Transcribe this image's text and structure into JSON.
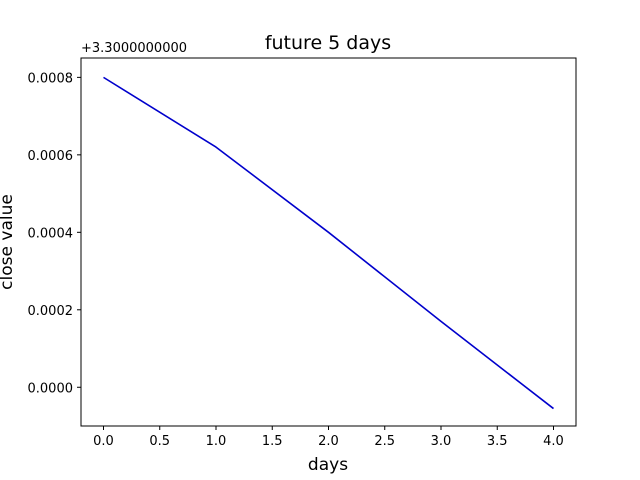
{
  "chart_data": {
    "type": "line",
    "title": "future 5 days",
    "xlabel": "days",
    "ylabel": "close value",
    "y_offset_label": "+3.3000000000",
    "x": [
      0,
      1,
      2,
      3,
      4
    ],
    "series": [
      {
        "values": [
          0.0008,
          0.00062,
          0.0004,
          0.00017,
          -5.5e-05
        ],
        "color": "#0000cc"
      }
    ],
    "xlim": [
      -0.2,
      4.2
    ],
    "ylim": [
      -0.0001,
      0.00085
    ],
    "x_ticks": [
      0.0,
      0.5,
      1.0,
      1.5,
      2.0,
      2.5,
      3.0,
      3.5,
      4.0
    ],
    "x_tick_labels": [
      "0.0",
      "0.5",
      "1.0",
      "1.5",
      "2.0",
      "2.5",
      "3.0",
      "3.5",
      "4.0"
    ],
    "y_ticks": [
      0.0,
      0.0002,
      0.0004,
      0.0006,
      0.0008
    ],
    "y_tick_labels": [
      "0.0000",
      "0.0002",
      "0.0004",
      "0.0006",
      "0.0008"
    ],
    "grid": false,
    "legend": "none"
  }
}
